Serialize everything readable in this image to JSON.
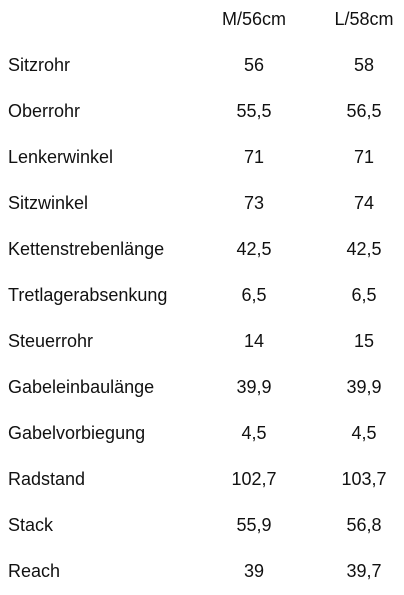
{
  "table": {
    "headers": [
      "M/56cm",
      "L/58cm"
    ],
    "rows": [
      {
        "label": "Sitzrohr",
        "m": "56",
        "l": "58"
      },
      {
        "label": "Oberrohr",
        "m": "55,5",
        "l": "56,5"
      },
      {
        "label": "Lenkerwinkel",
        "m": "71",
        "l": "71"
      },
      {
        "label": "Sitzwinkel",
        "m": "73",
        "l": "74"
      },
      {
        "label": "Kettenstrebenlänge",
        "m": "42,5",
        "l": "42,5"
      },
      {
        "label": "Tretlagerabsenkung",
        "m": "6,5",
        "l": "6,5"
      },
      {
        "label": "Steuerrohr",
        "m": "14",
        "l": "15"
      },
      {
        "label": "Gabeleinbaulänge",
        "m": "39,9",
        "l": "39,9"
      },
      {
        "label": "Gabelvorbiegung",
        "m": "4,5",
        "l": "4,5"
      },
      {
        "label": "Radstand",
        "m": "102,7",
        "l": "103,7"
      },
      {
        "label": "Stack",
        "m": "55,9",
        "l": "56,8"
      },
      {
        "label": "Reach",
        "m": "39",
        "l": "39,7"
      }
    ]
  }
}
